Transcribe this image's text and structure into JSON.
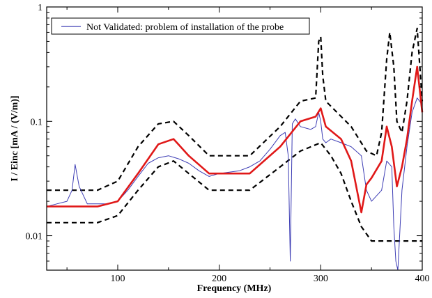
{
  "chart_data": {
    "type": "line",
    "xlabel": "Frequency (MHz)",
    "ylabel": "I / Einc [mA / (V/m)]",
    "xlim": [
      30,
      400
    ],
    "ylim": [
      0.005,
      1
    ],
    "yscale": "log",
    "x_ticks": [
      100,
      200,
      300,
      400
    ],
    "x_tick_labels": [
      "100",
      "200",
      "300",
      "400"
    ],
    "y_ticks": [
      0.01,
      0.1,
      1
    ],
    "y_tick_labels": [
      "0.01",
      "0.1",
      "1"
    ],
    "grid": false,
    "legend_position": "top-left",
    "series": [
      {
        "name": "Not Validated: problem of installation of the probe",
        "color": "#3c3cb4",
        "style": "solid-thin",
        "x": [
          30,
          40,
          50,
          55,
          58,
          62,
          70,
          80,
          90,
          100,
          110,
          120,
          130,
          140,
          150,
          160,
          170,
          180,
          190,
          200,
          210,
          220,
          230,
          240,
          250,
          260,
          265,
          268,
          270,
          272,
          275,
          280,
          290,
          295,
          298,
          300,
          302,
          305,
          310,
          320,
          330,
          340,
          345,
          350,
          360,
          365,
          370,
          372,
          374,
          376,
          380,
          385,
          390,
          395,
          400
        ],
        "y": [
          0.018,
          0.019,
          0.02,
          0.025,
          0.042,
          0.027,
          0.019,
          0.019,
          0.019,
          0.02,
          0.025,
          0.033,
          0.043,
          0.048,
          0.05,
          0.047,
          0.043,
          0.037,
          0.033,
          0.035,
          0.036,
          0.037,
          0.04,
          0.045,
          0.057,
          0.075,
          0.08,
          0.05,
          0.006,
          0.095,
          0.105,
          0.09,
          0.085,
          0.09,
          0.12,
          0.1,
          0.07,
          0.065,
          0.07,
          0.065,
          0.06,
          0.05,
          0.025,
          0.02,
          0.025,
          0.045,
          0.04,
          0.012,
          0.006,
          0.005,
          0.025,
          0.06,
          0.12,
          0.16,
          0.14
        ]
      },
      {
        "name": "",
        "color": "#e01818",
        "style": "solid-thick",
        "x": [
          30,
          80,
          100,
          120,
          140,
          155,
          170,
          190,
          230,
          260,
          280,
          295,
          300,
          305,
          320,
          330,
          340,
          345,
          350,
          360,
          365,
          370,
          375,
          380,
          385,
          390,
          395,
          400
        ],
        "y": [
          0.018,
          0.018,
          0.02,
          0.035,
          0.063,
          0.07,
          0.05,
          0.035,
          0.035,
          0.06,
          0.1,
          0.11,
          0.13,
          0.09,
          0.07,
          0.045,
          0.016,
          0.028,
          0.032,
          0.045,
          0.09,
          0.06,
          0.027,
          0.04,
          0.07,
          0.15,
          0.3,
          0.12
        ]
      },
      {
        "name": "",
        "color": "#000000",
        "style": "dashed",
        "x": [
          30,
          80,
          100,
          120,
          140,
          155,
          170,
          190,
          230,
          260,
          280,
          295,
          298,
          300,
          302,
          305,
          330,
          345,
          355,
          360,
          365,
          368,
          372,
          375,
          380,
          385,
          390,
          395,
          400
        ],
        "y": [
          0.025,
          0.025,
          0.03,
          0.06,
          0.095,
          0.1,
          0.075,
          0.05,
          0.05,
          0.09,
          0.15,
          0.16,
          0.5,
          0.55,
          0.25,
          0.15,
          0.09,
          0.055,
          0.05,
          0.08,
          0.35,
          0.6,
          0.3,
          0.1,
          0.08,
          0.15,
          0.4,
          0.65,
          0.15
        ]
      },
      {
        "name": "",
        "color": "#000000",
        "style": "dashed",
        "x": [
          30,
          80,
          100,
          120,
          140,
          155,
          170,
          190,
          230,
          260,
          280,
          300,
          310,
          320,
          330,
          340,
          350,
          380,
          400
        ],
        "y": [
          0.013,
          0.013,
          0.015,
          0.025,
          0.04,
          0.045,
          0.035,
          0.025,
          0.025,
          0.04,
          0.055,
          0.065,
          0.05,
          0.035,
          0.02,
          0.012,
          0.009,
          0.009,
          0.009
        ]
      }
    ]
  }
}
